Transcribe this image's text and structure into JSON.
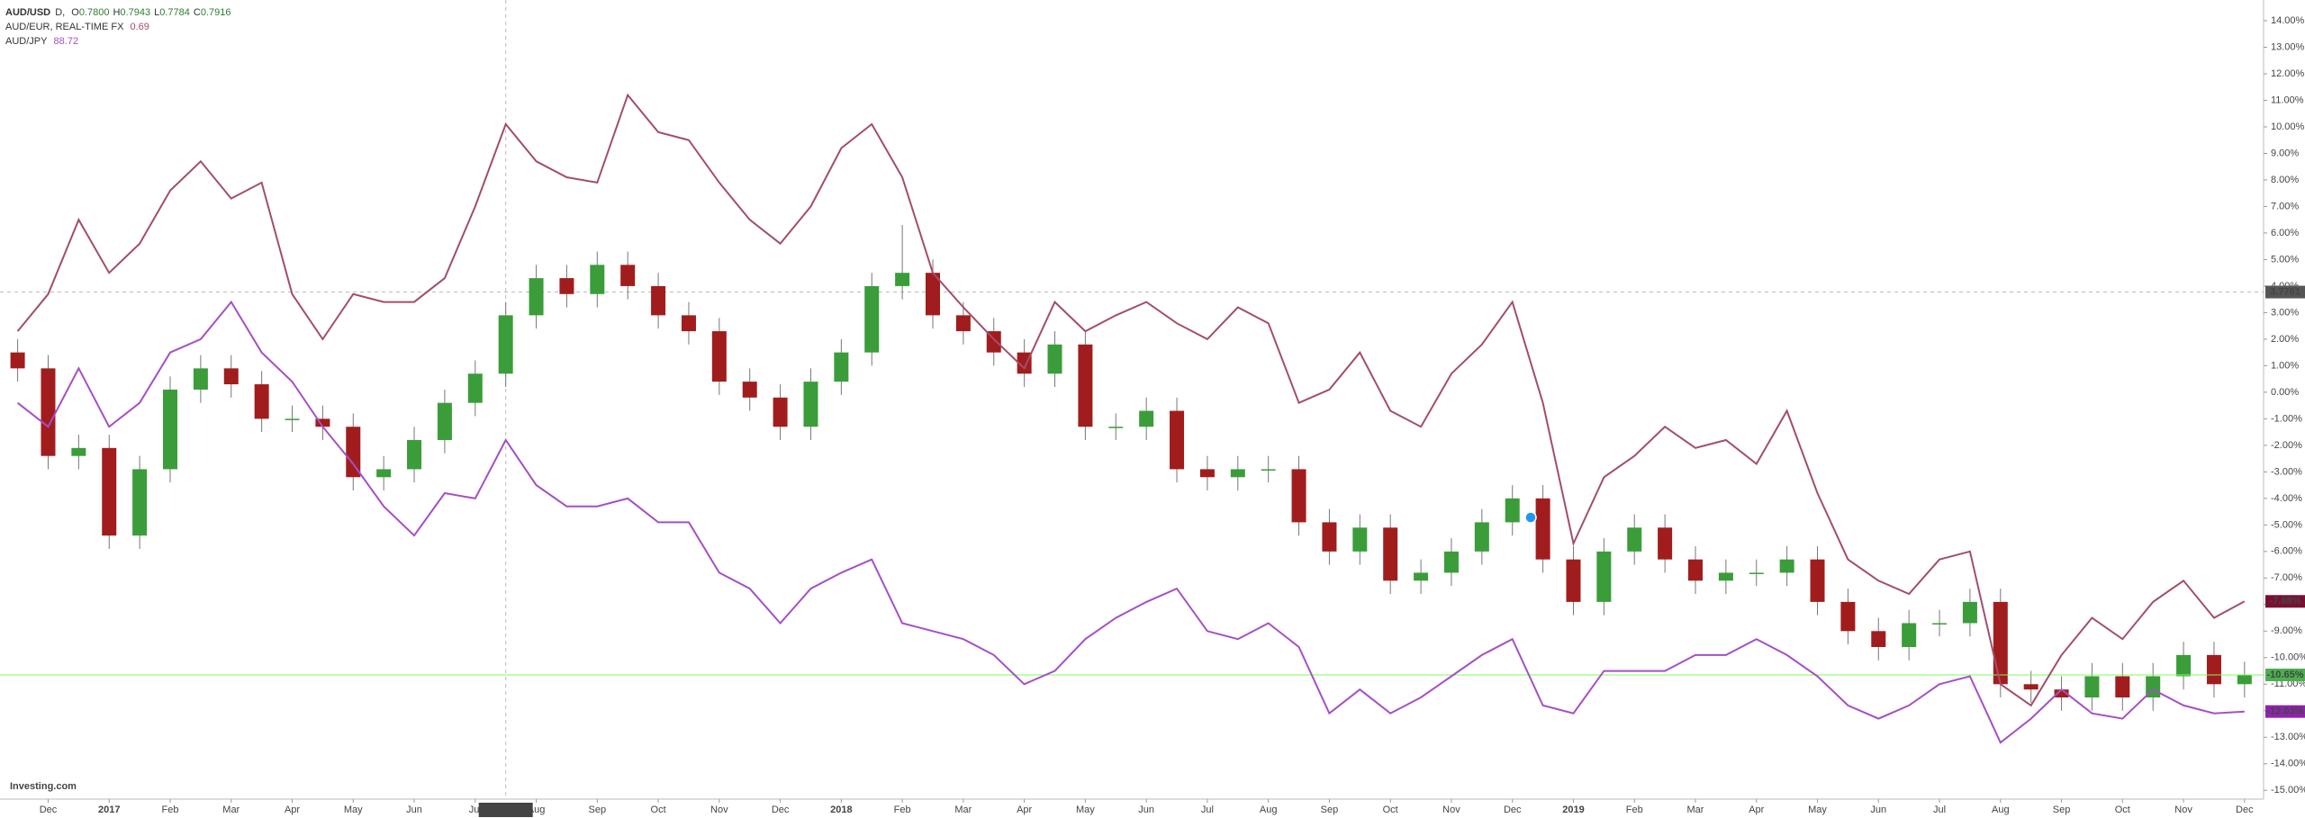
{
  "chart_data": {
    "type": "candlestick",
    "categories": [
      null,
      "Dec",
      null,
      "2017",
      null,
      "Feb",
      null,
      "Mar",
      null,
      "Apr",
      null,
      "May",
      null,
      "Jun",
      null,
      "Jul",
      null,
      "Aug",
      null,
      "Sep",
      null,
      "Oct",
      null,
      "Nov",
      null,
      "Dec",
      null,
      "2018",
      null,
      "Feb",
      null,
      "Mar",
      null,
      "Apr",
      null,
      "May",
      null,
      "Jun",
      null,
      "Jul",
      null,
      "Aug",
      null,
      "Sep",
      null,
      "Oct",
      null,
      "Nov",
      null,
      "Dec",
      null,
      "2019",
      null,
      "Feb",
      null,
      "Mar",
      null,
      "Apr",
      null,
      "May",
      null,
      "Jun",
      null,
      "Jul",
      null,
      "Aug",
      null,
      "Sep",
      null,
      "Oct",
      null,
      "Nov",
      null,
      "Dec"
    ],
    "ylim": [
      -15.33,
      14.78
    ],
    "yticks": [
      {
        "value": 14,
        "label": "14.00%"
      },
      {
        "value": 13,
        "label": "13.00%"
      },
      {
        "value": 12,
        "label": "12.00%"
      },
      {
        "value": 11,
        "label": "11.00%"
      },
      {
        "value": 10,
        "label": "10.00%"
      },
      {
        "value": 9,
        "label": "9.00%"
      },
      {
        "value": 8,
        "label": "8.00%"
      },
      {
        "value": 7,
        "label": "7.00%"
      },
      {
        "value": 6,
        "label": "6.00%"
      },
      {
        "value": 5,
        "label": "5.00%"
      },
      {
        "value": 4,
        "label": "4.00%"
      },
      {
        "value": 3,
        "label": "3.00%"
      },
      {
        "value": 2,
        "label": "2.00%"
      },
      {
        "value": 1,
        "label": "1.00%"
      },
      {
        "value": 0,
        "label": "0.00%"
      },
      {
        "value": -1,
        "label": "-1.00%"
      },
      {
        "value": -2,
        "label": "-2.00%"
      },
      {
        "value": -3,
        "label": "-3.00%"
      },
      {
        "value": -4,
        "label": "-4.00%"
      },
      {
        "value": -5,
        "label": "-5.00%"
      },
      {
        "value": -6,
        "label": "-6.00%"
      },
      {
        "value": -7,
        "label": "-7.00%"
      },
      {
        "value": -8,
        "label": "-8.00%"
      },
      {
        "value": -9,
        "label": "-9.00%"
      },
      {
        "value": -10,
        "label": "-10.00%"
      },
      {
        "value": -11,
        "label": "-11.00%"
      },
      {
        "value": -12,
        "label": "-12.00%"
      },
      {
        "value": -13,
        "label": "-13.00%"
      },
      {
        "value": -14,
        "label": "-14.00%"
      },
      {
        "value": -15,
        "label": "-15.00%"
      }
    ],
    "grid": false,
    "up_color": "#3a9d3a",
    "down_color": "#a11d1d",
    "series": [
      {
        "name": "AUD/USD",
        "interval": "D,",
        "type": "candlestick",
        "ohlc": [
          {
            "key": "O",
            "value": "0.7800"
          },
          {
            "key": "H",
            "value": "0.7943"
          },
          {
            "key": "L",
            "value": "0.7784"
          },
          {
            "key": "C",
            "value": "0.7916"
          }
        ],
        "open": [
          1.5,
          0.9,
          -2.4,
          -2.1,
          -5.4,
          -2.9,
          0.1,
          0.9,
          0.3,
          -1.0,
          -1.0,
          -1.3,
          -3.2,
          -2.9,
          -1.8,
          -0.4,
          0.7,
          2.9,
          4.3,
          3.7,
          4.8,
          4.0,
          2.9,
          2.3,
          0.4,
          -0.2,
          -1.3,
          0.4,
          1.5,
          4.0,
          4.5,
          2.9,
          2.3,
          1.5,
          0.7,
          1.8,
          -1.3,
          -1.3,
          -0.7,
          -2.9,
          -3.2,
          -2.9,
          -2.9,
          -4.9,
          -6.0,
          -5.1,
          -7.1,
          -6.8,
          -6.0,
          -4.9,
          -4.0,
          -6.3,
          -7.9,
          -6.0,
          -5.1,
          -6.3,
          -7.1,
          -6.8,
          -6.8,
          -6.3,
          -7.9,
          -9.0,
          -9.6,
          -8.7,
          -8.7,
          -7.9,
          -11.0,
          -11.2,
          -11.5,
          -10.7,
          -11.5,
          -10.7,
          -9.9,
          -11.0
        ],
        "high": [
          2.0,
          1.4,
          -1.6,
          -1.6,
          -2.4,
          0.6,
          1.4,
          1.4,
          0.8,
          -0.5,
          -0.5,
          -0.8,
          -2.4,
          -1.3,
          0.1,
          1.2,
          3.4,
          4.8,
          4.8,
          5.3,
          5.3,
          4.5,
          3.4,
          2.8,
          0.9,
          0.3,
          0.9,
          2.0,
          4.5,
          6.3,
          5.0,
          3.4,
          2.8,
          2.0,
          2.3,
          2.3,
          -0.8,
          -0.2,
          -0.2,
          -2.4,
          -2.4,
          -2.4,
          -2.4,
          -4.4,
          -4.6,
          -4.6,
          -6.3,
          -5.5,
          -4.4,
          -3.5,
          -3.5,
          -5.8,
          -5.5,
          -4.6,
          -4.6,
          -5.8,
          -6.3,
          -6.3,
          -5.8,
          -5.8,
          -7.4,
          -8.5,
          -8.2,
          -8.2,
          -7.4,
          -7.4,
          -10.5,
          -10.7,
          -10.2,
          -10.2,
          -10.2,
          -9.4,
          -9.4,
          -10.15
        ],
        "low": [
          0.4,
          -2.9,
          -2.9,
          -5.9,
          -5.9,
          -3.4,
          -0.4,
          -0.2,
          -1.5,
          -1.5,
          -1.8,
          -3.7,
          -3.7,
          -3.4,
          -2.3,
          -0.9,
          0.2,
          2.4,
          3.2,
          3.2,
          3.5,
          2.4,
          1.8,
          -0.1,
          -0.7,
          -1.8,
          -1.8,
          -0.1,
          1.0,
          3.5,
          2.4,
          1.8,
          1.0,
          0.2,
          0.2,
          -1.8,
          -1.8,
          -1.8,
          -3.4,
          -3.7,
          -3.7,
          -3.4,
          -5.4,
          -6.5,
          -6.5,
          -7.6,
          -7.6,
          -7.3,
          -6.5,
          -5.4,
          -6.8,
          -8.4,
          -8.4,
          -6.5,
          -6.8,
          -7.6,
          -7.6,
          -7.3,
          -7.3,
          -8.4,
          -9.5,
          -10.1,
          -10.1,
          -9.2,
          -9.2,
          -11.5,
          -11.7,
          -12.0,
          -12.0,
          -12.0,
          -12.0,
          -11.2,
          -11.5,
          -11.5
        ],
        "close": [
          0.9,
          -2.4,
          -2.1,
          -5.4,
          -2.9,
          0.1,
          0.9,
          0.3,
          -1.0,
          -1.0,
          -1.3,
          -3.2,
          -2.9,
          -1.8,
          -0.4,
          0.7,
          2.9,
          4.3,
          3.7,
          4.8,
          4.0,
          2.9,
          2.3,
          0.4,
          -0.2,
          -1.3,
          0.4,
          1.5,
          4.0,
          4.5,
          2.9,
          2.3,
          1.5,
          0.7,
          1.8,
          -1.3,
          -1.3,
          -0.7,
          -2.9,
          -3.2,
          -2.9,
          -2.9,
          -4.9,
          -6.0,
          -5.1,
          -7.1,
          -6.8,
          -6.0,
          -4.9,
          -4.0,
          -6.3,
          -7.9,
          -6.0,
          -5.1,
          -6.3,
          -7.1,
          -6.8,
          -6.8,
          -6.3,
          -7.9,
          -9.0,
          -9.6,
          -8.7,
          -8.7,
          -7.9,
          -11.0,
          -11.2,
          -11.5,
          -10.7,
          -11.5,
          -10.7,
          -9.9,
          -11.0,
          -10.65
        ],
        "price_label": "-10.65%",
        "label_color": "#4caf50"
      },
      {
        "name": "AUD/EUR, REAL-TIME FX",
        "type": "line",
        "color": "#a24d6c",
        "last_price": "0.69",
        "values": [
          2.3,
          3.7,
          6.5,
          4.5,
          5.6,
          7.6,
          8.7,
          7.3,
          7.9,
          3.7,
          2.0,
          3.7,
          3.4,
          3.4,
          4.3,
          7.0,
          10.1,
          8.7,
          8.1,
          7.9,
          11.2,
          9.8,
          9.5,
          7.9,
          6.5,
          5.6,
          7.0,
          9.2,
          10.1,
          8.1,
          4.5,
          3.2,
          2.0,
          0.9,
          3.4,
          2.3,
          2.9,
          3.4,
          2.6,
          2.0,
          3.2,
          2.6,
          -0.4,
          0.1,
          1.5,
          -0.7,
          -1.3,
          0.7,
          1.8,
          3.4,
          -0.4,
          -5.7,
          -3.2,
          -2.4,
          -1.3,
          -2.1,
          -1.8,
          -2.7,
          -0.7,
          -3.8,
          -6.3,
          -7.1,
          -7.6,
          -6.3,
          -6.0,
          -11.0,
          -11.8,
          -9.9,
          -8.5,
          -9.3,
          -7.9,
          -7.1,
          -8.5,
          -7.88
        ],
        "price_label": "-7.88%",
        "label_color": "#7a0f33"
      },
      {
        "name": "AUD/JPY",
        "type": "line",
        "color": "#a450c4",
        "last_price": "88.72",
        "values": [
          -0.4,
          -1.3,
          0.9,
          -1.3,
          -0.4,
          1.5,
          2.0,
          3.4,
          1.5,
          0.4,
          -1.3,
          -2.7,
          -4.3,
          -5.4,
          -3.8,
          -4.0,
          -1.8,
          -3.5,
          -4.3,
          -4.3,
          -4.0,
          -4.9,
          -4.9,
          -6.8,
          -7.4,
          -8.7,
          -7.4,
          -6.8,
          -6.3,
          -8.7,
          -9.0,
          -9.3,
          -9.9,
          -11.0,
          -10.5,
          -9.3,
          -8.5,
          -7.9,
          -7.4,
          -9.0,
          -9.3,
          -8.7,
          -9.6,
          -12.1,
          -11.2,
          -12.1,
          -11.5,
          -10.7,
          -9.9,
          -9.3,
          -11.8,
          -12.1,
          -10.5,
          -10.5,
          -10.5,
          -9.9,
          -9.9,
          -9.3,
          -9.9,
          -10.7,
          -11.8,
          -12.3,
          -11.8,
          -11.0,
          -10.7,
          -13.2,
          -12.3,
          -11.2,
          -12.1,
          -12.3,
          -11.2,
          -11.8,
          -12.1,
          -12.03
        ],
        "price_label": "-12.03%",
        "label_color": "#8e24aa"
      }
    ],
    "crosshair": {
      "x_label": "2017-07-15",
      "y_value": 3.7761,
      "y_label": "3.7761"
    },
    "watermark": "Investing.com"
  }
}
